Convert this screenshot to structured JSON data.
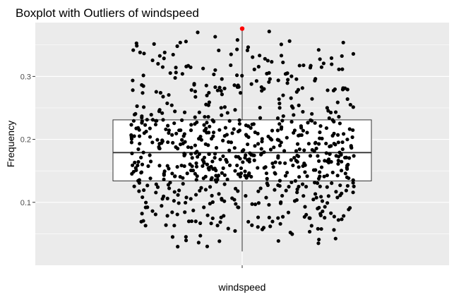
{
  "chart_data": {
    "type": "boxplot",
    "title": "Boxplot with Outliers of  windspeed",
    "xlabel": "windspeed",
    "ylabel": "Frequency",
    "category": "windspeed",
    "ylim": [
      0.0,
      0.3856
    ],
    "yticks": [
      0.1,
      0.2,
      0.3
    ],
    "grid": true,
    "colors": {
      "panel_background": "#ebebeb",
      "grid_major": "#ffffff",
      "box_fill": "#ffffff",
      "box_line": "#333333",
      "points": "#000000",
      "outlier": "#ff0000"
    },
    "box": {
      "lower_whisker": 0.022,
      "q1": 0.134,
      "median": 0.179,
      "q3": 0.231,
      "upper_whisker": 0.376
    },
    "outliers": [
      0.376
    ],
    "jitter": {
      "n": 731,
      "x_range": [
        -0.27,
        0.27
      ],
      "y_min": 0.022,
      "y_max": 0.376,
      "q1": 0.134,
      "median": 0.179,
      "q3": 0.231
    }
  }
}
